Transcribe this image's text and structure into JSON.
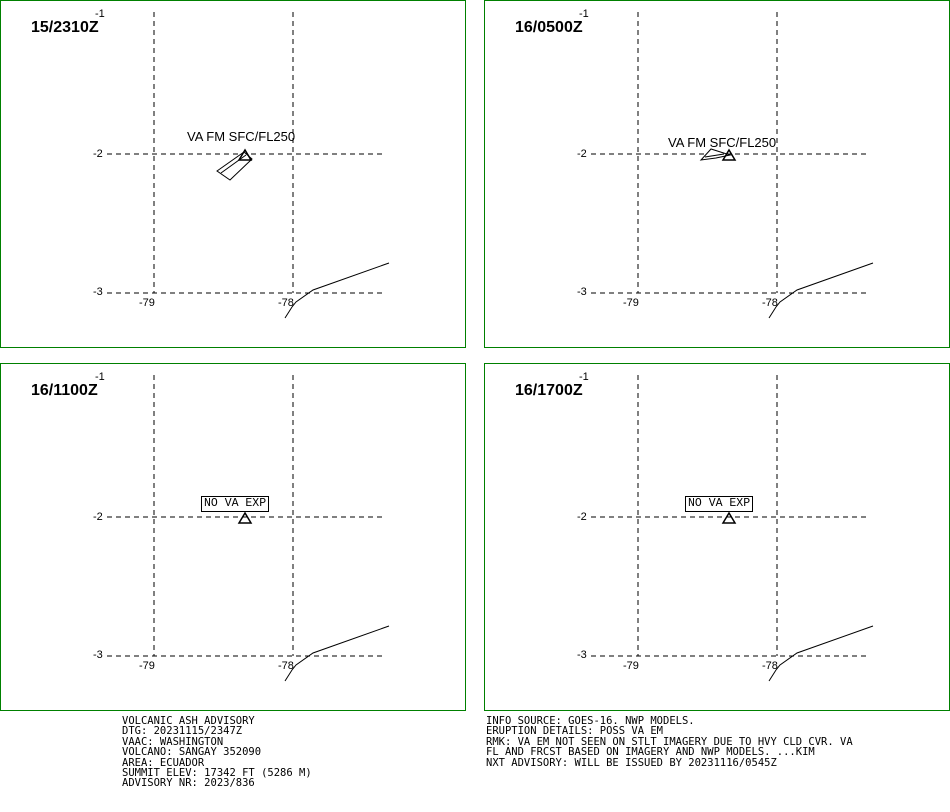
{
  "panels": [
    {
      "time_label": "15/2310Z",
      "annotation": "VA FM SFC/FL250",
      "annotation_type": "text"
    },
    {
      "time_label": "16/0500Z",
      "annotation": "VA FM SFC/FL250",
      "annotation_type": "text"
    },
    {
      "time_label": "16/1100Z",
      "annotation": "NO VA EXP",
      "annotation_type": "boxed"
    },
    {
      "time_label": "16/1700Z",
      "annotation": "NO VA EXP",
      "annotation_type": "boxed"
    }
  ],
  "grid_labels": {
    "lat_top": "-1",
    "lat_mid": "-2",
    "lat_bottom": "-3",
    "lon_left": "-79",
    "lon_right": "-78"
  },
  "advisory_left": [
    "VOLCANIC ASH ADVISORY",
    "DTG: 20231115/2347Z",
    "VAAC: WASHINGTON",
    "VOLCANO: SANGAY 352090",
    "AREA: ECUADOR",
    "SUMMIT ELEV: 17342 FT (5286 M)",
    "ADVISORY NR: 2023/836"
  ],
  "advisory_right": [
    "INFO SOURCE: GOES-16. NWP MODELS.",
    "ERUPTION DETAILS: POSS VA EM",
    "RMK: VA EM NOT SEEN ON STLT IMAGERY DUE TO HVY CLD CVR. VA",
    "FL AND FRCST BASED ON IMAGERY AND NWP MODELS. ...KIM",
    "NXT ADVISORY: WILL BE ISSUED BY 20231116/0545Z"
  ],
  "colors": {
    "panel_border": "#008000",
    "lines": "#000000",
    "background": "#ffffff"
  },
  "icons": {
    "volcano": "volcano-triangle-icon"
  }
}
